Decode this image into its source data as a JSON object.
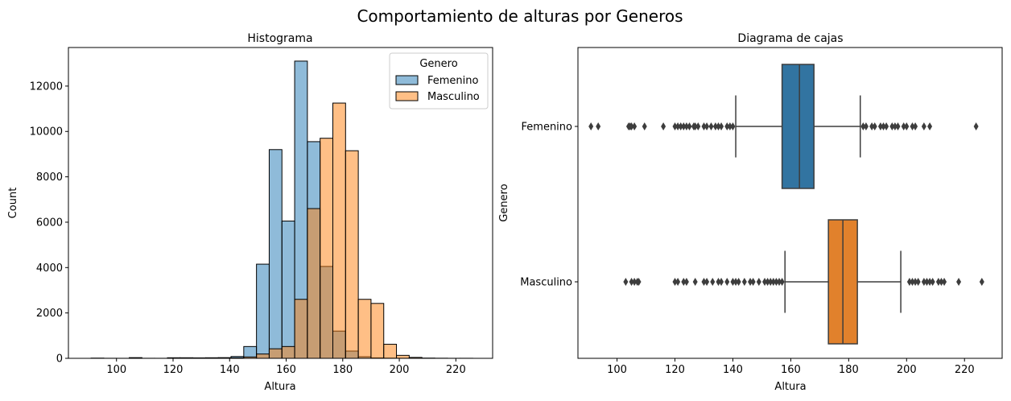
{
  "suptitle": "Comportamiento de alturas por Generos",
  "colors": {
    "femenino": "#1f77b4",
    "masculino": "#ff7f0e",
    "femenino_box": "#3274a1",
    "masculino_box": "#e1812c",
    "edge": "#000000",
    "box_line": "#3d3d3d"
  },
  "chart_data": [
    {
      "type": "bar",
      "subtype": "histogram",
      "title": "Histograma",
      "xlabel": "Altura",
      "ylabel": "Count",
      "xlim": [
        83,
        233
      ],
      "ylim": [
        0,
        13700
      ],
      "xticks": [
        100,
        120,
        140,
        160,
        180,
        200,
        220
      ],
      "yticks": [
        0,
        2000,
        4000,
        6000,
        8000,
        10000,
        12000
      ],
      "legend": {
        "title": "Genero",
        "position": "top-right",
        "entries": [
          "Femenino",
          "Masculino"
        ]
      },
      "bin_edges": [
        91,
        95.5,
        100,
        104.5,
        109,
        113.5,
        118,
        122.5,
        127,
        131.5,
        136,
        140.5,
        145,
        149.5,
        154,
        158.5,
        163,
        167.5,
        172,
        176.5,
        181,
        185.5,
        190,
        194.5,
        199,
        203.5,
        208,
        212.5,
        217,
        221.5,
        226
      ],
      "series": [
        {
          "name": "Femenino",
          "values": [
            10,
            3,
            2,
            30,
            3,
            2,
            25,
            25,
            20,
            25,
            30,
            80,
            520,
            4150,
            9200,
            6050,
            13100,
            9550,
            4050,
            1200,
            320,
            70,
            20,
            10,
            5,
            3,
            2,
            1,
            0,
            1
          ]
        },
        {
          "name": "Masculino",
          "values": [
            0,
            0,
            0,
            2,
            0,
            0,
            3,
            5,
            5,
            10,
            10,
            20,
            60,
            190,
            420,
            520,
            2600,
            6600,
            9700,
            11250,
            9150,
            2600,
            2420,
            620,
            130,
            40,
            10,
            5,
            2,
            2
          ]
        }
      ]
    },
    {
      "type": "box",
      "title": "Diagrama de cajas",
      "xlabel": "Altura",
      "ylabel": "Genero",
      "xlim": [
        86.5,
        233
      ],
      "xticks": [
        100,
        120,
        140,
        160,
        180,
        200,
        220
      ],
      "categories": [
        "Femenino",
        "Masculino"
      ],
      "boxes": [
        {
          "name": "Femenino",
          "whisker_low": 141,
          "q1": 157,
          "median": 163,
          "q3": 168,
          "whisker_high": 184,
          "outliers": [
            91,
            93.5,
            104,
            104.5,
            105,
            106,
            109.5,
            116,
            120,
            121,
            122,
            123,
            124,
            125,
            126.5,
            127,
            128,
            130,
            131,
            132.5,
            134,
            135,
            136,
            138,
            139,
            140,
            185,
            186,
            188,
            189,
            191,
            192,
            193,
            195,
            196,
            197,
            199,
            200,
            202,
            203,
            206,
            208,
            224
          ]
        },
        {
          "name": "Masculino",
          "whisker_low": 158,
          "q1": 173,
          "median": 178,
          "q3": 183,
          "whisker_high": 198,
          "outliers": [
            103,
            105,
            106,
            107,
            107.5,
            120,
            121,
            123,
            124,
            127,
            130,
            131,
            133,
            135,
            136,
            138,
            140,
            141,
            142,
            144,
            146,
            147,
            149,
            151,
            152,
            153,
            154,
            155,
            156,
            157,
            201,
            202,
            203,
            204,
            206,
            207,
            208,
            209,
            211,
            212,
            213,
            218,
            226
          ]
        }
      ]
    }
  ]
}
